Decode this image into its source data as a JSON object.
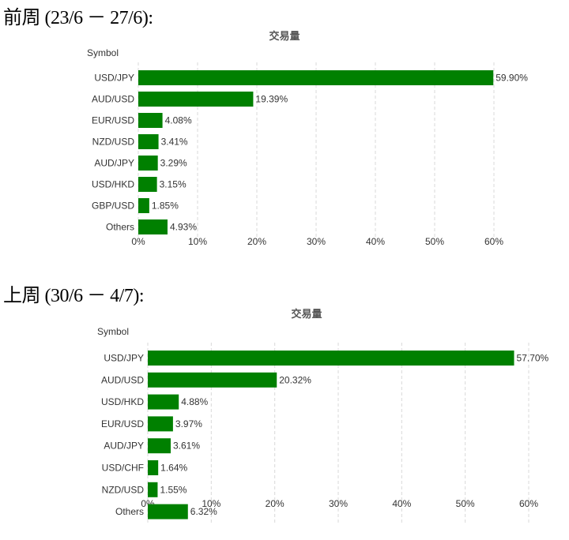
{
  "sections": [
    {
      "heading": "前周 (23/6 － 27/6):"
    },
    {
      "heading": "上周 (30/6 － 4/7):"
    }
  ],
  "chart_data": [
    {
      "type": "bar",
      "orientation": "horizontal",
      "title": "交易量",
      "ylabel": "Symbol",
      "categories": [
        "USD/JPY",
        "AUD/USD",
        "EUR/USD",
        "NZD/USD",
        "AUD/JPY",
        "USD/HKD",
        "GBP/USD",
        "Others"
      ],
      "values": [
        59.9,
        19.39,
        4.08,
        3.41,
        3.29,
        3.15,
        1.85,
        4.93
      ],
      "value_labels": [
        "59.90%",
        "19.39%",
        "4.08%",
        "3.41%",
        "3.29%",
        "3.15%",
        "1.85%",
        "4.93%"
      ],
      "xlim": [
        0,
        60
      ],
      "xticks": [
        "0%",
        "10%",
        "20%",
        "30%",
        "40%",
        "50%",
        "60%"
      ],
      "bar_color": "#008000",
      "grid": true
    },
    {
      "type": "bar",
      "orientation": "horizontal",
      "title": "交易量",
      "ylabel": "Symbol",
      "categories": [
        "USD/JPY",
        "AUD/USD",
        "USD/HKD",
        "EUR/USD",
        "AUD/JPY",
        "USD/CHF",
        "NZD/USD",
        "Others"
      ],
      "values": [
        57.7,
        20.32,
        4.88,
        3.97,
        3.61,
        1.64,
        1.55,
        6.32
      ],
      "value_labels": [
        "57.70%",
        "20.32%",
        "4.88%",
        "3.97%",
        "3.61%",
        "1.64%",
        "1.55%",
        "6.32%"
      ],
      "xlim": [
        0,
        60
      ],
      "xticks": [
        "0%",
        "10%",
        "20%",
        "30%",
        "40%",
        "50%",
        "60%"
      ],
      "bar_color": "#008000",
      "grid": true
    }
  ]
}
